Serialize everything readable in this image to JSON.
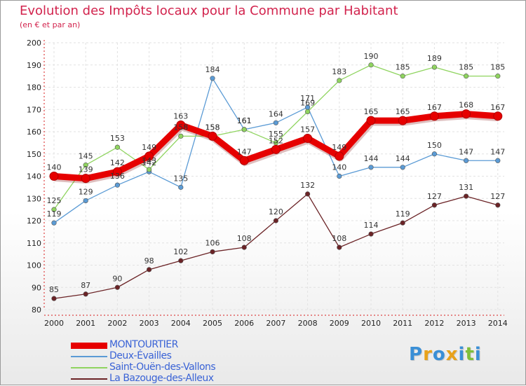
{
  "chart_data": {
    "type": "line",
    "title": "Evolution des Impôts locaux pour la Commune par Habitant",
    "subtitle": "(en € et par an)",
    "xlabel": "",
    "ylabel": "",
    "x": [
      "2000",
      "2001",
      "2002",
      "2003",
      "2004",
      "2005",
      "2006",
      "2007",
      "2008",
      "2009",
      "2010",
      "2011",
      "2012",
      "2013",
      "2014"
    ],
    "ylim": [
      80,
      200
    ],
    "yticks": [
      80,
      90,
      100,
      110,
      120,
      130,
      140,
      150,
      160,
      170,
      180,
      190,
      200
    ],
    "grid": true,
    "series": [
      {
        "name": "MONTOURTIER",
        "color": "#e60000",
        "emphasis": true,
        "values": [
          140,
          139,
          142,
          149,
          163,
          158,
          147,
          152,
          157,
          149,
          165,
          165,
          167,
          168,
          167
        ]
      },
      {
        "name": "Deux-Évailles",
        "color": "#5b9bd5",
        "values": [
          119,
          129,
          136,
          142,
          135,
          184,
          161,
          164,
          171,
          140,
          144,
          144,
          150,
          147,
          147
        ]
      },
      {
        "name": "Saint-Ouën-des-Vallons",
        "color": "#8fd45f",
        "values": [
          125,
          145,
          153,
          143,
          158,
          158,
          161,
          155,
          169,
          183,
          190,
          185,
          189,
          185,
          185
        ]
      },
      {
        "name": "La Bazouge-des-Alleux",
        "color": "#6b2326",
        "values": [
          85,
          87,
          90,
          98,
          102,
          106,
          108,
          120,
          132,
          108,
          114,
          119,
          127,
          131,
          127
        ]
      }
    ]
  },
  "logo": {
    "letters": [
      "P",
      "r",
      "o",
      "x",
      "i",
      "t",
      "i"
    ],
    "colors": [
      "#3a8fd6",
      "#e8a21a",
      "#3a8fd6",
      "#e8a21a",
      "#3a8fd6",
      "#7fbf3a",
      "#3a8fd6"
    ]
  }
}
